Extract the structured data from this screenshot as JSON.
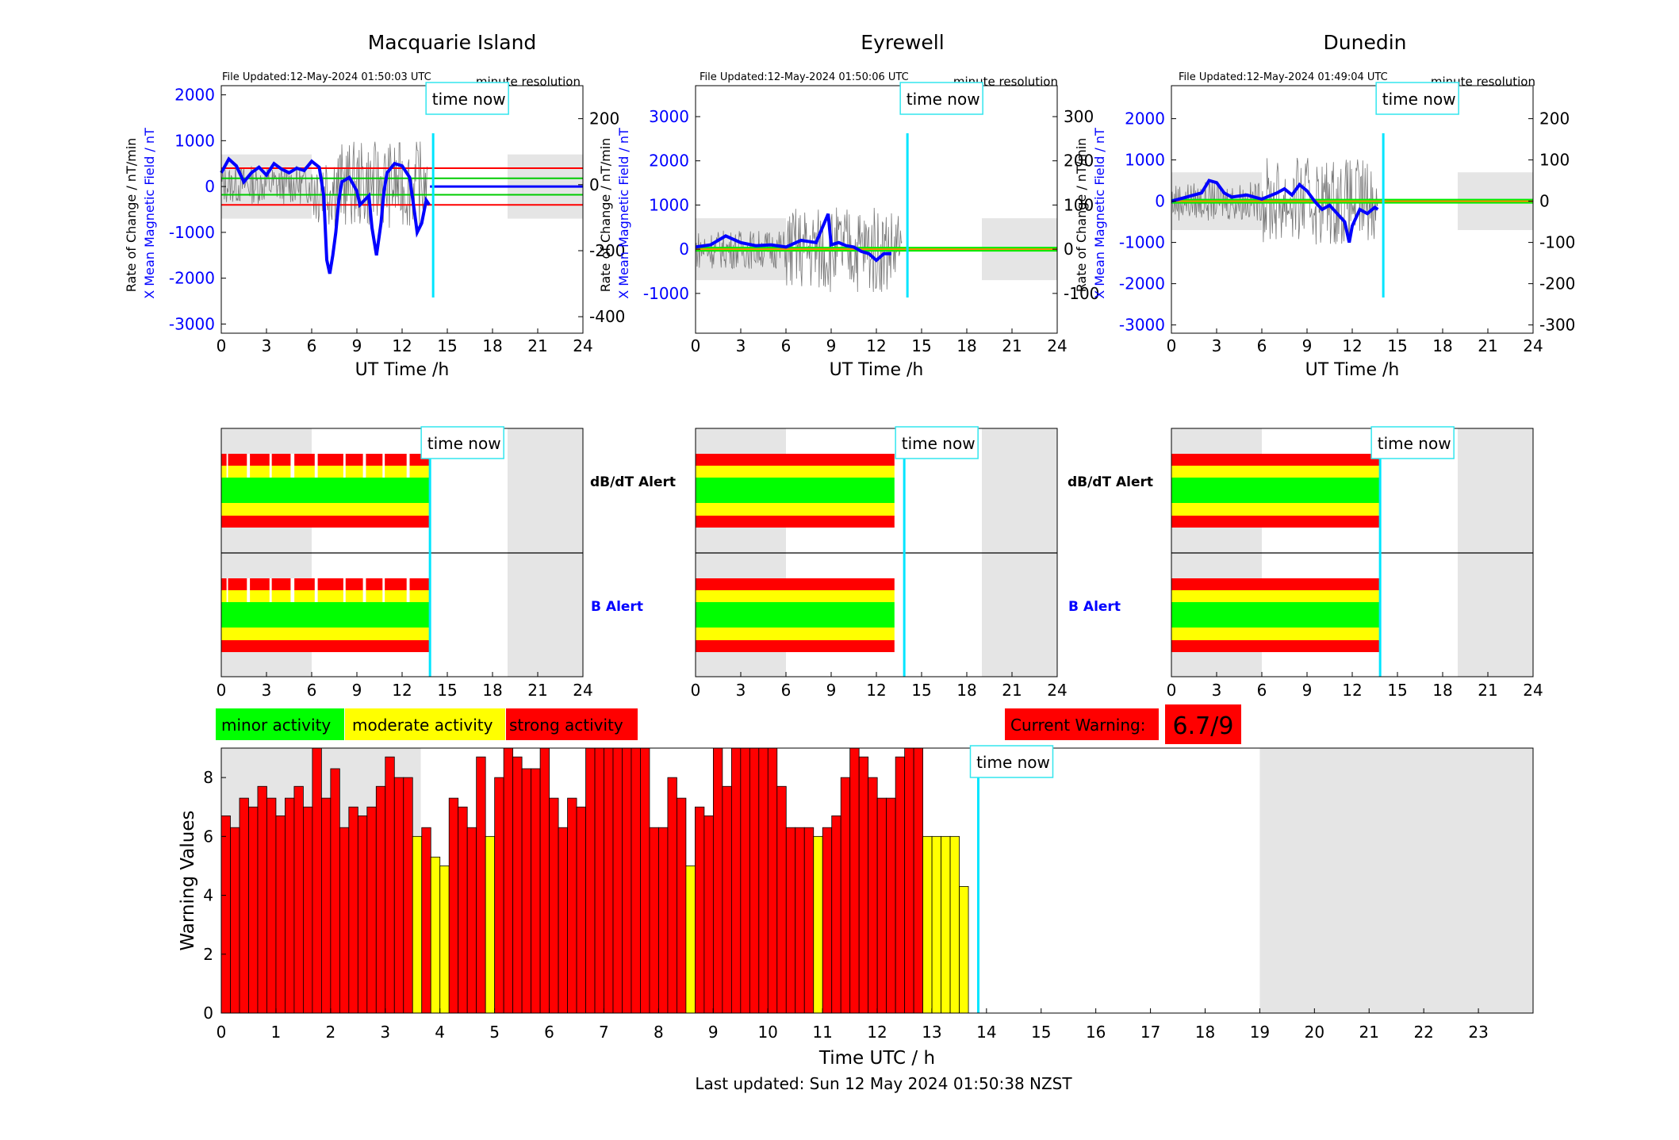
{
  "stations": [
    {
      "name": "Macquarie Island",
      "file_updated": "File Updated:12-May-2024 01:50:03 UTC",
      "resolution": "minute resolution",
      "now_label": "time now",
      "left_ylabel": "X Mean Magnetic Field / nT",
      "right_ylabel": "Rate of Change / nT/min",
      "xlabel": "UT Time /h",
      "left_ylim": [
        -3200,
        2200
      ],
      "right_ylim": [
        -450,
        300
      ],
      "left_ticks": [
        2000,
        1000,
        0,
        -1000,
        -2000,
        -3000
      ],
      "right_ticks": [
        200,
        0,
        -200,
        -400
      ],
      "xticks": [
        0,
        3,
        6,
        9,
        12,
        15,
        18,
        21,
        24
      ],
      "threshold_lines": [
        {
          "value": 400,
          "color": "#ff0000"
        },
        {
          "value": 180,
          "color": "#00cc00"
        },
        {
          "value": -180,
          "color": "#00cc00"
        },
        {
          "value": -400,
          "color": "#ff0000"
        }
      ],
      "field_series": [
        [
          0,
          300
        ],
        [
          0.5,
          600
        ],
        [
          1,
          450
        ],
        [
          1.5,
          100
        ],
        [
          2,
          300
        ],
        [
          2.5,
          420
        ],
        [
          3,
          250
        ],
        [
          3.5,
          500
        ],
        [
          4,
          380
        ],
        [
          4.5,
          300
        ],
        [
          5,
          400
        ],
        [
          5.5,
          350
        ],
        [
          6,
          550
        ],
        [
          6.5,
          420
        ],
        [
          6.8,
          -200
        ],
        [
          7.0,
          -1600
        ],
        [
          7.2,
          -1900
        ],
        [
          7.4,
          -1500
        ],
        [
          7.6,
          -1000
        ],
        [
          7.8,
          -300
        ],
        [
          8,
          100
        ],
        [
          8.5,
          200
        ],
        [
          9,
          -100
        ],
        [
          9.2,
          -400
        ],
        [
          9.5,
          -300
        ],
        [
          9.8,
          -200
        ],
        [
          10,
          -900
        ],
        [
          10.3,
          -1500
        ],
        [
          10.6,
          -800
        ],
        [
          10.8,
          -100
        ],
        [
          11,
          300
        ],
        [
          11.5,
          500
        ],
        [
          12,
          450
        ],
        [
          12.5,
          200
        ],
        [
          12.8,
          -500
        ],
        [
          13.0,
          -1000
        ],
        [
          13.3,
          -800
        ],
        [
          13.6,
          -300
        ],
        [
          13.8,
          -400
        ]
      ],
      "now_h": 13.85,
      "daytime_shade": [
        [
          0,
          6
        ],
        [
          19,
          24
        ]
      ]
    },
    {
      "name": "Eyrewell",
      "file_updated": "File Updated:12-May-2024 01:50:06 UTC",
      "resolution": "minute resolution",
      "now_label": "time now",
      "left_ylabel": "X Mean Magnetic Field / nT",
      "right_ylabel": "Rate of Change / nT/min",
      "xlabel": "UT Time /h",
      "left_ylim": [
        -1900,
        3700
      ],
      "right_ylim": [
        -190,
        370
      ],
      "left_ticks": [
        3000,
        2000,
        1000,
        0,
        -1000
      ],
      "right_ticks": [
        300,
        200,
        100,
        0,
        -100
      ],
      "xticks": [
        0,
        3,
        6,
        9,
        12,
        15,
        18,
        21,
        24
      ],
      "threshold_lines": [],
      "field_series": [
        [
          0,
          50
        ],
        [
          1,
          100
        ],
        [
          2,
          300
        ],
        [
          3,
          150
        ],
        [
          4,
          80
        ],
        [
          5,
          100
        ],
        [
          6,
          50
        ],
        [
          7,
          200
        ],
        [
          8,
          150
        ],
        [
          8.8,
          800
        ],
        [
          9,
          100
        ],
        [
          9.5,
          150
        ],
        [
          10,
          80
        ],
        [
          10.5,
          50
        ],
        [
          11,
          -50
        ],
        [
          11.5,
          -100
        ],
        [
          12,
          -250
        ],
        [
          12.5,
          -100
        ],
        [
          13,
          -100
        ]
      ],
      "now_h": 13.85,
      "daytime_shade": [
        [
          0,
          6
        ],
        [
          19,
          24
        ]
      ]
    },
    {
      "name": "Dunedin",
      "file_updated": "File Updated:12-May-2024 01:49:04 UTC",
      "resolution": "minute resolution",
      "now_label": "time now",
      "left_ylabel": "X Mean Magnetic Field / nT",
      "right_ylabel": "Rate of Change / nT/min",
      "xlabel": "UT Time /h",
      "left_ylim": [
        -3200,
        2800
      ],
      "right_ylim": [
        -320,
        280
      ],
      "left_ticks": [
        2000,
        1000,
        0,
        -1000,
        -2000,
        -3000
      ],
      "right_ticks": [
        200,
        100,
        0,
        -100,
        -200,
        -300
      ],
      "xticks": [
        0,
        3,
        6,
        9,
        12,
        15,
        18,
        21,
        24
      ],
      "threshold_lines": [],
      "field_series": [
        [
          0,
          0
        ],
        [
          1,
          100
        ],
        [
          2,
          200
        ],
        [
          2.5,
          500
        ],
        [
          3,
          450
        ],
        [
          3.5,
          200
        ],
        [
          4,
          100
        ],
        [
          5,
          150
        ],
        [
          6,
          50
        ],
        [
          7,
          200
        ],
        [
          7.5,
          300
        ],
        [
          8,
          150
        ],
        [
          8.5,
          400
        ],
        [
          9,
          250
        ],
        [
          9.5,
          0
        ],
        [
          10,
          -200
        ],
        [
          10.5,
          -100
        ],
        [
          11,
          -300
        ],
        [
          11.5,
          -500
        ],
        [
          11.8,
          -1000
        ],
        [
          12,
          -600
        ],
        [
          12.5,
          -200
        ],
        [
          13,
          -300
        ],
        [
          13.5,
          -150
        ],
        [
          13.7,
          -200
        ]
      ],
      "now_h": 13.85,
      "daytime_shade": [
        [
          0,
          6
        ],
        [
          19,
          24
        ]
      ]
    }
  ],
  "alert_panel": {
    "dbdt_label": "dB/dT Alert",
    "b_label": "B Alert",
    "now_label": "time now",
    "xticks": [
      0,
      3,
      6,
      9,
      12,
      15,
      18,
      21,
      24
    ]
  },
  "legend": {
    "minor": "minor activity",
    "moderate": "moderate activity",
    "strong": "strong activity",
    "colors": {
      "minor": "#00ff00",
      "moderate": "#ffff00",
      "strong": "#ff0000"
    }
  },
  "current_warning": {
    "label": "Current Warning:",
    "value": "6.7/9"
  },
  "chart_data": {
    "type": "bar",
    "xlabel": "Time UTC / h",
    "ylabel": "Warning Values",
    "xlim": [
      0,
      24
    ],
    "ylim": [
      0,
      9
    ],
    "yticks": [
      0,
      2,
      4,
      6,
      8
    ],
    "xticks": [
      0,
      1,
      2,
      3,
      4,
      5,
      6,
      7,
      8,
      9,
      10,
      11,
      12,
      13,
      14,
      15,
      16,
      17,
      18,
      19,
      20,
      21,
      22,
      23
    ],
    "bin_width_h": 0.1667,
    "values": [
      6.7,
      6.3,
      7.3,
      7.0,
      7.7,
      7.3,
      6.7,
      7.3,
      7.7,
      7.0,
      9.0,
      7.3,
      8.3,
      6.3,
      7.0,
      6.7,
      7.0,
      7.7,
      8.7,
      8.0,
      8.0,
      6.0,
      6.3,
      5.3,
      5.0,
      7.3,
      7.0,
      6.3,
      8.7,
      6.0,
      8.0,
      9.0,
      8.7,
      8.3,
      8.3,
      9.0,
      7.3,
      6.3,
      7.3,
      7.0,
      9.0,
      9.0,
      9.0,
      9.0,
      9.0,
      9.0,
      9.0,
      6.3,
      6.3,
      8.0,
      7.3,
      5.0,
      7.0,
      6.7,
      9.0,
      7.7,
      9.0,
      9.0,
      9.0,
      9.0,
      9.0,
      7.7,
      6.3,
      6.3,
      6.3,
      6.0,
      6.3,
      6.7,
      8.0,
      9.0,
      8.7,
      8.0,
      7.3,
      7.3,
      8.7,
      9.0,
      9.0,
      6.0,
      6.0,
      6.0,
      6.0,
      4.3
    ],
    "now_label": "time now",
    "now_h": 13.85,
    "daytime_shade": [
      [
        0,
        3.65
      ],
      [
        19,
        24
      ]
    ],
    "footer": "Last updated: Sun 12 May 2024 01:50:38 NZST"
  }
}
